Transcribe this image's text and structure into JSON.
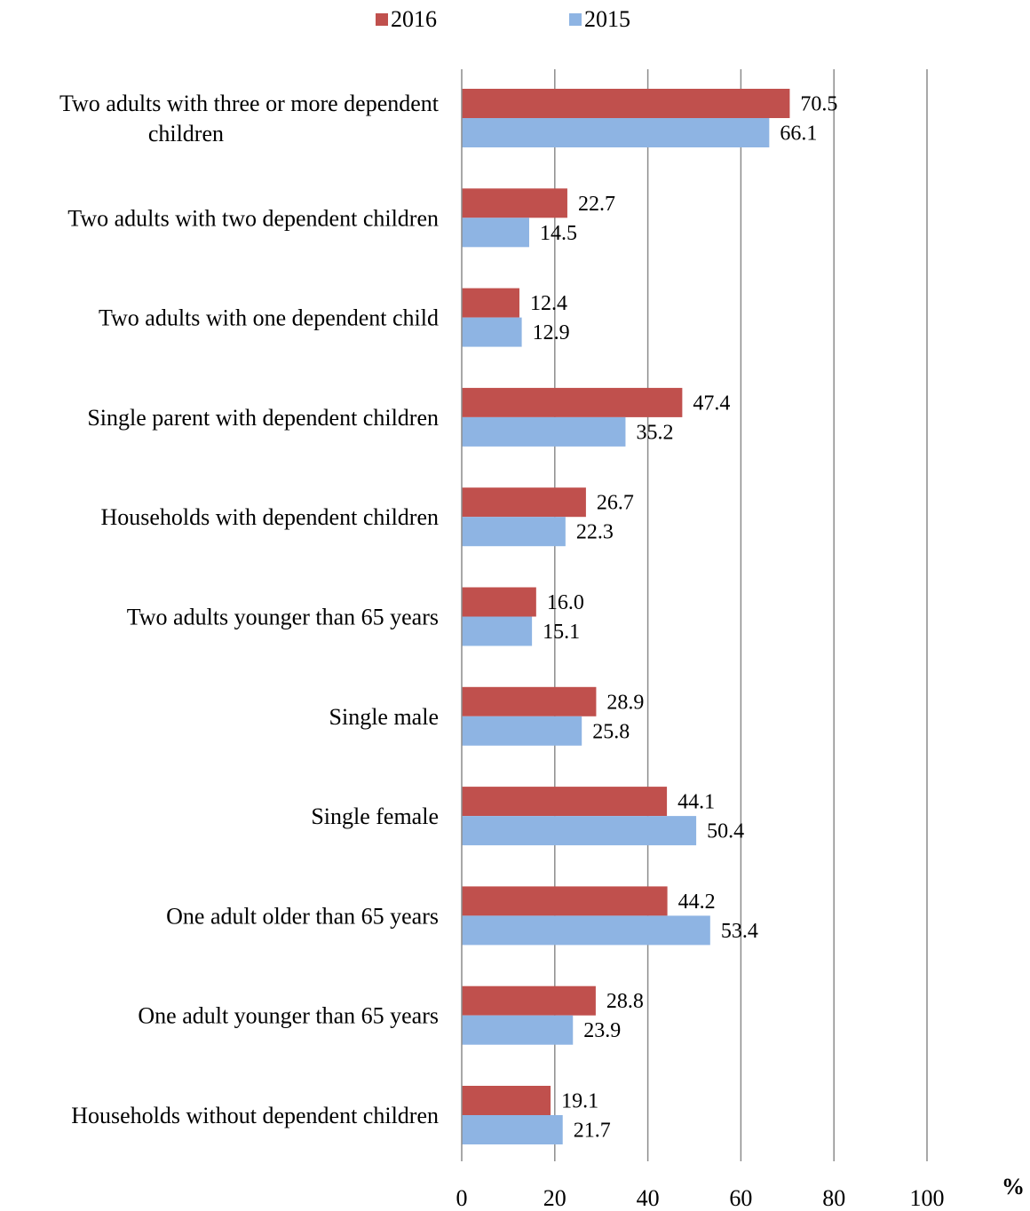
{
  "chart_data": {
    "type": "bar",
    "orientation": "horizontal",
    "categories": [
      [
        "Two adults with three or more dependent",
        "children"
      ],
      [
        "Two adults with two dependent children"
      ],
      [
        "Two adults with one dependent child"
      ],
      [
        "Single parent with dependent children"
      ],
      [
        "Households with dependent children"
      ],
      [
        "Two adults younger than 65 years"
      ],
      [
        "Single male"
      ],
      [
        "Single female"
      ],
      [
        "One adult older than 65 years"
      ],
      [
        "One adult younger than 65 years"
      ],
      [
        "Households without dependent children"
      ]
    ],
    "series": [
      {
        "name": "2016",
        "color": "#C0504D",
        "values": [
          70.5,
          22.7,
          12.4,
          47.4,
          26.7,
          16.0,
          28.9,
          44.1,
          44.2,
          28.8,
          19.1
        ],
        "labels": [
          "70.5",
          "22.7",
          "12.4",
          "47.4",
          "26.7",
          "16.0",
          "28.9",
          "44.1",
          "44.2",
          "28.8",
          "19.1"
        ]
      },
      {
        "name": "2015",
        "color": "#8EB4E3",
        "values": [
          66.1,
          14.5,
          12.9,
          35.2,
          22.3,
          15.1,
          25.8,
          50.4,
          53.4,
          23.9,
          21.7
        ],
        "labels": [
          "66.1",
          "14.5",
          "12.9",
          "35.2",
          "22.3",
          "15.1",
          "25.8",
          "50.4",
          "53.4",
          "23.9",
          "21.7"
        ]
      }
    ],
    "xlim": [
      0,
      100
    ],
    "xticks": [
      "0",
      "20",
      "40",
      "60",
      "80",
      "100"
    ],
    "xunit": "%",
    "grid": "vertical",
    "legend_position": "top"
  }
}
